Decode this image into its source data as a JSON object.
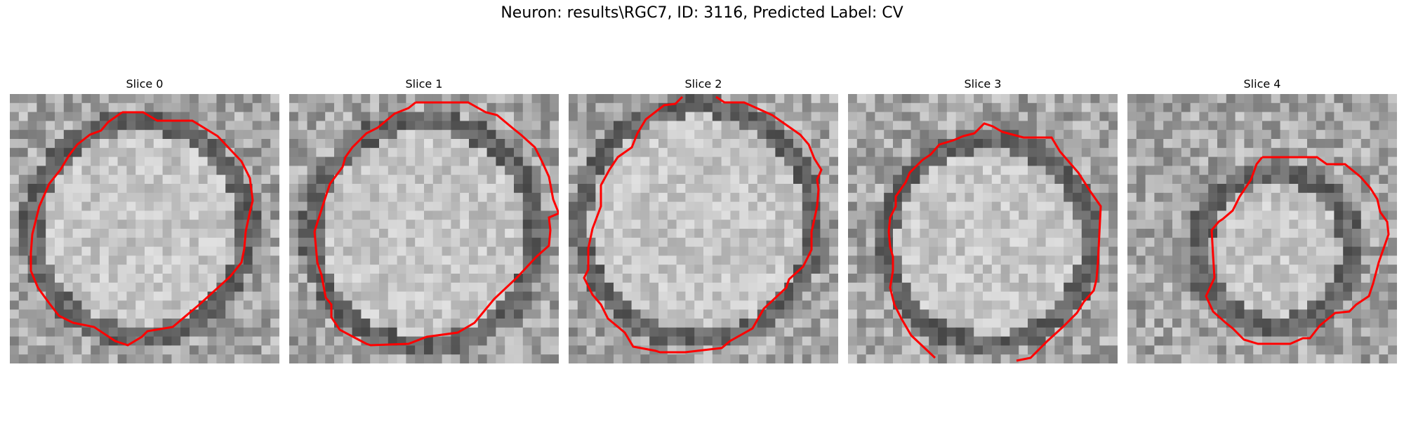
{
  "figure": {
    "title": "Neuron: results\\RGC7, ID: 3116, Predicted Label: CV",
    "contour_color": "#ff0000"
  },
  "slices": [
    {
      "title": "Slice 0"
    },
    {
      "title": "Slice 1"
    },
    {
      "title": "Slice 2"
    },
    {
      "title": "Slice 3"
    },
    {
      "title": "Slice 4"
    }
  ]
}
